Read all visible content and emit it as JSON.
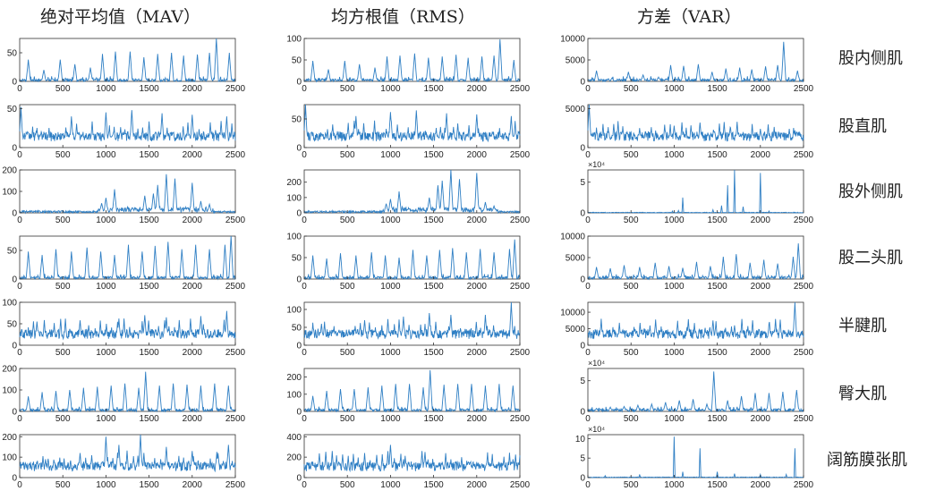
{
  "column_titles": [
    "绝对平均值（MAV）",
    "均方根值（RMS）",
    "方差（VAR）"
  ],
  "row_labels": [
    "股内侧肌",
    "股直肌",
    "股外侧肌",
    "股二头肌",
    "半腱肌",
    "臀大肌",
    "阔筋膜张肌"
  ],
  "colors": {
    "line": "#2f7fc4",
    "axis": "#333333",
    "text": "#222222"
  },
  "chart_data": [
    {
      "type": "line",
      "row": "股内侧肌",
      "column": "绝对平均值（MAV）",
      "xlim": [
        0,
        2500
      ],
      "ylim": [
        0,
        75
      ],
      "yticks": [
        0,
        50
      ],
      "exponent": "",
      "pattern": "periodic",
      "spikes": [
        [
          100,
          38
        ],
        [
          280,
          20
        ],
        [
          470,
          38
        ],
        [
          640,
          30
        ],
        [
          820,
          24
        ],
        [
          960,
          48
        ],
        [
          1110,
          52
        ],
        [
          1280,
          52
        ],
        [
          1440,
          42
        ],
        [
          1600,
          48
        ],
        [
          1760,
          50
        ],
        [
          1900,
          45
        ],
        [
          2060,
          47
        ],
        [
          2200,
          50
        ],
        [
          2280,
          75
        ],
        [
          2430,
          50
        ]
      ]
    },
    {
      "type": "line",
      "row": "股内侧肌",
      "column": "均方根值（RMS）",
      "xlim": [
        0,
        2500
      ],
      "ylim": [
        0,
        100
      ],
      "yticks": [
        0,
        50,
        100
      ],
      "exponent": "",
      "pattern": "periodic",
      "spikes": [
        [
          100,
          48
        ],
        [
          280,
          28
        ],
        [
          470,
          48
        ],
        [
          640,
          40
        ],
        [
          820,
          32
        ],
        [
          960,
          58
        ],
        [
          1110,
          60
        ],
        [
          1280,
          65
        ],
        [
          1440,
          55
        ],
        [
          1600,
          58
        ],
        [
          1760,
          62
        ],
        [
          1900,
          55
        ],
        [
          2060,
          58
        ],
        [
          2200,
          60
        ],
        [
          2270,
          98
        ],
        [
          2430,
          50
        ]
      ]
    },
    {
      "type": "line",
      "row": "股内侧肌",
      "column": "方差（VAR）",
      "xlim": [
        0,
        2500
      ],
      "ylim": [
        0,
        10000
      ],
      "yticks": [
        0,
        5000,
        10000
      ],
      "exponent": "",
      "pattern": "periodic",
      "spikes": [
        [
          100,
          2500
        ],
        [
          280,
          800
        ],
        [
          470,
          2200
        ],
        [
          640,
          1500
        ],
        [
          820,
          1000
        ],
        [
          960,
          3800
        ],
        [
          1110,
          3600
        ],
        [
          1280,
          4000
        ],
        [
          1440,
          2200
        ],
        [
          1600,
          3000
        ],
        [
          1760,
          3200
        ],
        [
          1900,
          2800
        ],
        [
          2060,
          3500
        ],
        [
          2200,
          3800
        ],
        [
          2270,
          9200
        ],
        [
          2430,
          2500
        ]
      ]
    },
    {
      "type": "line",
      "row": "股直肌",
      "column": "绝对平均值（MAV）",
      "xlim": [
        0,
        2500
      ],
      "ylim": [
        0,
        55
      ],
      "yticks": [
        0,
        50
      ],
      "exponent": "",
      "pattern": "dense",
      "spikes": [
        [
          15,
          52
        ],
        [
          600,
          40
        ],
        [
          1000,
          45
        ],
        [
          1300,
          48
        ],
        [
          1650,
          44
        ],
        [
          2000,
          42
        ],
        [
          2400,
          40
        ]
      ]
    },
    {
      "type": "line",
      "row": "股直肌",
      "column": "均方根值（RMS）",
      "xlim": [
        0,
        2500
      ],
      "ylim": [
        0,
        75
      ],
      "yticks": [
        0,
        50
      ],
      "exponent": "",
      "pattern": "dense",
      "spikes": [
        [
          15,
          75
        ],
        [
          600,
          55
        ],
        [
          1000,
          62
        ],
        [
          1300,
          65
        ],
        [
          1650,
          60
        ],
        [
          2000,
          58
        ],
        [
          2400,
          55
        ]
      ]
    },
    {
      "type": "line",
      "row": "股直肌",
      "column": "方差（VAR）",
      "xlim": [
        0,
        2500
      ],
      "ylim": [
        0,
        5500
      ],
      "yticks": [
        0,
        5000
      ],
      "exponent": "",
      "pattern": "dense",
      "spikes": [
        [
          15,
          5500
        ],
        [
          600,
          2500
        ],
        [
          1000,
          2800
        ],
        [
          1300,
          3200
        ],
        [
          1650,
          2600
        ],
        [
          2000,
          2400
        ],
        [
          2400,
          2200
        ]
      ]
    },
    {
      "type": "line",
      "row": "股外侧肌",
      "column": "绝对平均值（MAV）",
      "xlim": [
        0,
        2500
      ],
      "ylim": [
        0,
        200
      ],
      "yticks": [
        0,
        100,
        200
      ],
      "exponent": "",
      "pattern": "burst",
      "spikes": [
        [
          950,
          45
        ],
        [
          1000,
          70
        ],
        [
          1100,
          110
        ],
        [
          1450,
          80
        ],
        [
          1550,
          90
        ],
        [
          1600,
          130
        ],
        [
          1700,
          180
        ],
        [
          1800,
          160
        ],
        [
          2000,
          140
        ],
        [
          2100,
          55
        ],
        [
          2200,
          40
        ]
      ]
    },
    {
      "type": "line",
      "row": "股外侧肌",
      "column": "均方根值（RMS）",
      "xlim": [
        0,
        2500
      ],
      "ylim": [
        0,
        280
      ],
      "yticks": [
        0,
        100,
        200
      ],
      "exponent": "",
      "pattern": "burst",
      "spikes": [
        [
          950,
          60
        ],
        [
          1000,
          90
        ],
        [
          1100,
          140
        ],
        [
          1450,
          100
        ],
        [
          1550,
          180
        ],
        [
          1600,
          210
        ],
        [
          1700,
          280
        ],
        [
          1800,
          220
        ],
        [
          2000,
          260
        ],
        [
          2100,
          70
        ],
        [
          2200,
          45
        ]
      ]
    },
    {
      "type": "line",
      "row": "股外侧肌",
      "column": "方差（VAR）",
      "xlim": [
        0,
        2500
      ],
      "ylim": [
        0,
        7
      ],
      "yticks": [
        0,
        5
      ],
      "exponent": "×10⁴",
      "pattern": "sparse",
      "spikes": [
        [
          980,
          0.3
        ],
        [
          1050,
          0.4
        ],
        [
          1100,
          2.5
        ],
        [
          1450,
          0.5
        ],
        [
          1550,
          1.2
        ],
        [
          1620,
          4.5
        ],
        [
          1700,
          7
        ],
        [
          1800,
          1
        ],
        [
          2000,
          6.5
        ],
        [
          2100,
          0.3
        ]
      ]
    },
    {
      "type": "line",
      "row": "股二头肌",
      "column": "绝对平均值（MAV）",
      "xlim": [
        0,
        2500
      ],
      "ylim": [
        0,
        75
      ],
      "yticks": [
        0,
        50
      ],
      "exponent": "",
      "pattern": "periodic",
      "spikes": [
        [
          100,
          48
        ],
        [
          260,
          42
        ],
        [
          420,
          52
        ],
        [
          600,
          48
        ],
        [
          780,
          55
        ],
        [
          940,
          48
        ],
        [
          1100,
          42
        ],
        [
          1260,
          60
        ],
        [
          1420,
          48
        ],
        [
          1570,
          58
        ],
        [
          1720,
          65
        ],
        [
          1880,
          52
        ],
        [
          2040,
          60
        ],
        [
          2200,
          52
        ],
        [
          2380,
          60
        ],
        [
          2450,
          75
        ]
      ]
    },
    {
      "type": "line",
      "row": "股二头肌",
      "column": "均方根值（RMS）",
      "xlim": [
        0,
        2500
      ],
      "ylim": [
        0,
        100
      ],
      "yticks": [
        0,
        50,
        100
      ],
      "exponent": "",
      "pattern": "periodic",
      "spikes": [
        [
          100,
          55
        ],
        [
          260,
          48
        ],
        [
          420,
          60
        ],
        [
          600,
          55
        ],
        [
          780,
          62
        ],
        [
          940,
          55
        ],
        [
          1100,
          50
        ],
        [
          1260,
          68
        ],
        [
          1420,
          55
        ],
        [
          1570,
          68
        ],
        [
          1720,
          72
        ],
        [
          1880,
          62
        ],
        [
          2040,
          70
        ],
        [
          2200,
          62
        ],
        [
          2380,
          70
        ],
        [
          2440,
          92
        ]
      ]
    },
    {
      "type": "line",
      "row": "股二头肌",
      "column": "方差（VAR）",
      "xlim": [
        0,
        2500
      ],
      "ylim": [
        0,
        10000
      ],
      "yticks": [
        0,
        5000,
        10000
      ],
      "exponent": "",
      "pattern": "periodic",
      "spikes": [
        [
          100,
          2800
        ],
        [
          260,
          2500
        ],
        [
          420,
          3200
        ],
        [
          600,
          2800
        ],
        [
          780,
          3800
        ],
        [
          940,
          3000
        ],
        [
          1100,
          2600
        ],
        [
          1260,
          4000
        ],
        [
          1420,
          3000
        ],
        [
          1570,
          5200
        ],
        [
          1720,
          5800
        ],
        [
          1880,
          3800
        ],
        [
          2040,
          4500
        ],
        [
          2200,
          3600
        ],
        [
          2380,
          5200
        ],
        [
          2440,
          8300
        ]
      ]
    },
    {
      "type": "line",
      "row": "半腱肌",
      "column": "绝对平均值（MAV）",
      "xlim": [
        0,
        2500
      ],
      "ylim": [
        0,
        100
      ],
      "yticks": [
        0,
        50,
        100
      ],
      "exponent": "",
      "pattern": "dense",
      "spikes": [
        [
          200,
          55
        ],
        [
          700,
          58
        ],
        [
          1150,
          62
        ],
        [
          1450,
          70
        ],
        [
          1700,
          65
        ],
        [
          2100,
          68
        ],
        [
          2400,
          80
        ]
      ]
    },
    {
      "type": "line",
      "row": "半腱肌",
      "column": "均方根值（RMS）",
      "xlim": [
        0,
        2500
      ],
      "ylim": [
        0,
        120
      ],
      "yticks": [
        0,
        50,
        100
      ],
      "exponent": "",
      "pattern": "dense",
      "spikes": [
        [
          200,
          60
        ],
        [
          700,
          70
        ],
        [
          1150,
          80
        ],
        [
          1450,
          90
        ],
        [
          1700,
          85
        ],
        [
          2100,
          85
        ],
        [
          2400,
          120
        ]
      ]
    },
    {
      "type": "line",
      "row": "半腱肌",
      "column": "方差（VAR）",
      "xlim": [
        0,
        2500
      ],
      "ylim": [
        0,
        13000
      ],
      "yticks": [
        0,
        5000,
        10000
      ],
      "exponent": "",
      "pattern": "dense",
      "spikes": [
        [
          200,
          2500
        ],
        [
          700,
          3000
        ],
        [
          1150,
          5500
        ],
        [
          1450,
          7500
        ],
        [
          1700,
          6000
        ],
        [
          2100,
          6500
        ],
        [
          2400,
          13000
        ]
      ]
    },
    {
      "type": "line",
      "row": "臀大肌",
      "column": "绝对平均值（MAV）",
      "xlim": [
        0,
        2500
      ],
      "ylim": [
        0,
        200
      ],
      "yticks": [
        0,
        100,
        200
      ],
      "exponent": "",
      "pattern": "periodic",
      "spikes": [
        [
          100,
          70
        ],
        [
          260,
          90
        ],
        [
          420,
          95
        ],
        [
          580,
          100
        ],
        [
          740,
          110
        ],
        [
          900,
          115
        ],
        [
          1060,
          120
        ],
        [
          1220,
          130
        ],
        [
          1380,
          110
        ],
        [
          1460,
          185
        ],
        [
          1620,
          120
        ],
        [
          1780,
          130
        ],
        [
          1940,
          125
        ],
        [
          2100,
          120
        ],
        [
          2260,
          130
        ],
        [
          2420,
          120
        ]
      ]
    },
    {
      "type": "line",
      "row": "臀大肌",
      "column": "均方根值（RMS）",
      "xlim": [
        0,
        2500
      ],
      "ylim": [
        0,
        250
      ],
      "yticks": [
        0,
        100,
        200
      ],
      "exponent": "",
      "pattern": "periodic",
      "spikes": [
        [
          100,
          90
        ],
        [
          260,
          120
        ],
        [
          420,
          130
        ],
        [
          580,
          130
        ],
        [
          740,
          140
        ],
        [
          900,
          150
        ],
        [
          1060,
          160
        ],
        [
          1220,
          160
        ],
        [
          1380,
          140
        ],
        [
          1460,
          240
        ],
        [
          1620,
          155
        ],
        [
          1780,
          160
        ],
        [
          1940,
          160
        ],
        [
          2100,
          150
        ],
        [
          2260,
          160
        ],
        [
          2420,
          150
        ]
      ]
    },
    {
      "type": "line",
      "row": "臀大肌",
      "column": "方差（VAR）",
      "xlim": [
        0,
        2500
      ],
      "ylim": [
        0,
        7
      ],
      "yticks": [
        0,
        5
      ],
      "exponent": "×10⁴",
      "pattern": "periodic",
      "spikes": [
        [
          100,
          0.5
        ],
        [
          260,
          0.7
        ],
        [
          420,
          0.8
        ],
        [
          580,
          1
        ],
        [
          740,
          1.2
        ],
        [
          900,
          1.5
        ],
        [
          1060,
          1.8
        ],
        [
          1220,
          2
        ],
        [
          1380,
          1.2
        ],
        [
          1460,
          6.5
        ],
        [
          1620,
          1.8
        ],
        [
          1780,
          2.5
        ],
        [
          1940,
          3
        ],
        [
          2100,
          3
        ],
        [
          2260,
          3.2
        ],
        [
          2420,
          3.5
        ]
      ]
    },
    {
      "type": "line",
      "row": "阔筋膜张肌",
      "column": "绝对平均值（MAV）",
      "xlim": [
        0,
        2500
      ],
      "ylim": [
        0,
        210
      ],
      "yticks": [
        0,
        100,
        200
      ],
      "exponent": "",
      "pattern": "dense",
      "spikes": [
        [
          300,
          90
        ],
        [
          700,
          120
        ],
        [
          1000,
          200
        ],
        [
          1150,
          160
        ],
        [
          1400,
          210
        ],
        [
          1700,
          150
        ],
        [
          2000,
          130
        ],
        [
          2300,
          120
        ],
        [
          2420,
          160
        ]
      ]
    },
    {
      "type": "line",
      "row": "阔筋膜张肌",
      "column": "均方根值（RMS）",
      "xlim": [
        0,
        2500
      ],
      "ylim": [
        0,
        420
      ],
      "yticks": [
        0,
        200,
        400
      ],
      "exponent": "",
      "pattern": "dense",
      "spikes": [
        [
          300,
          110
        ],
        [
          700,
          130
        ],
        [
          1000,
          320
        ],
        [
          1150,
          180
        ],
        [
          1400,
          250
        ],
        [
          1700,
          170
        ],
        [
          2000,
          140
        ],
        [
          2300,
          120
        ],
        [
          2420,
          180
        ]
      ]
    },
    {
      "type": "line",
      "row": "阔筋膜张肌",
      "column": "方差（VAR）",
      "xlim": [
        0,
        2500
      ],
      "ylim": [
        0,
        11
      ],
      "yticks": [
        0,
        5,
        10
      ],
      "exponent": "×10⁴",
      "pattern": "sparse",
      "spikes": [
        [
          200,
          0.5
        ],
        [
          600,
          0.8
        ],
        [
          1000,
          10.5
        ],
        [
          1100,
          1.5
        ],
        [
          1300,
          7.5
        ],
        [
          1500,
          1.5
        ],
        [
          1700,
          1
        ],
        [
          2000,
          0.8
        ],
        [
          2300,
          0.8
        ],
        [
          2400,
          7.5
        ]
      ]
    }
  ],
  "shared_xticks": [
    0,
    500,
    1000,
    1500,
    2000,
    2500
  ]
}
